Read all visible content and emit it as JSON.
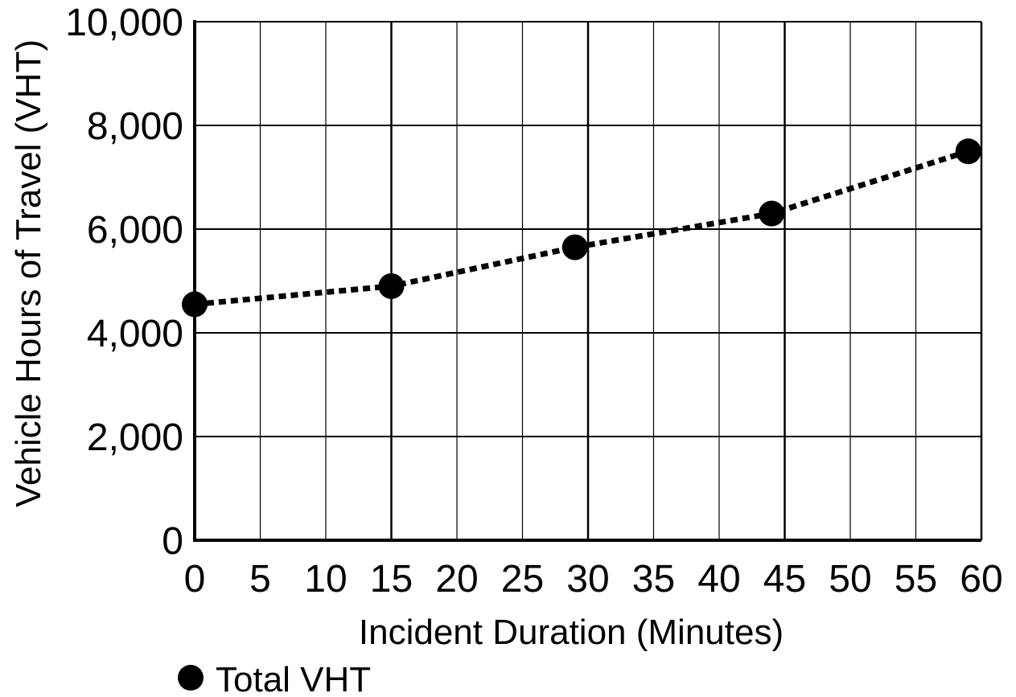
{
  "chart_data": {
    "type": "line",
    "title": "",
    "xlabel": "Incident Duration (Minutes)",
    "ylabel": "Vehicle Hours of Travel (VHT)",
    "xlim": [
      0,
      60
    ],
    "ylim": [
      0,
      10000
    ],
    "x_ticks": [
      0,
      5,
      10,
      15,
      20,
      25,
      30,
      35,
      40,
      45,
      50,
      55,
      60
    ],
    "y_ticks": [
      0,
      2000,
      4000,
      6000,
      8000,
      10000
    ],
    "x_tick_labels": [
      "0",
      "5",
      "10",
      "15",
      "20",
      "25",
      "30",
      "35",
      "40",
      "45",
      "50",
      "55",
      "60"
    ],
    "y_tick_labels": [
      "0",
      "2,000",
      "4,000",
      "6,000",
      "8,000",
      "10,000"
    ],
    "grid": true,
    "legend_position": "bottom-left",
    "series": [
      {
        "name": "Total VHT",
        "color": "#000000",
        "line_style": "dotted",
        "marker": "circle",
        "x": [
          0,
          15,
          29,
          44,
          59
        ],
        "y": [
          4550,
          4900,
          5650,
          6300,
          7500
        ]
      }
    ]
  },
  "legend": {
    "items": [
      {
        "label": "Total VHT",
        "marker": "filled-circle"
      }
    ]
  }
}
